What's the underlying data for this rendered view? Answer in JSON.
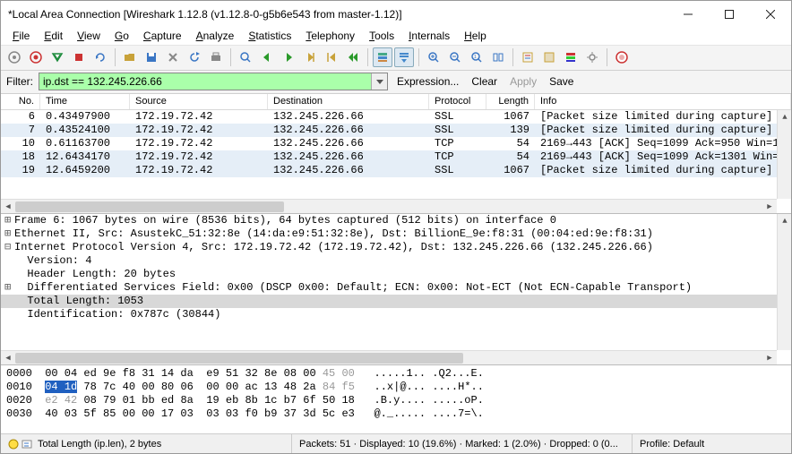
{
  "window": {
    "title": "*Local Area Connection   [Wireshark 1.12.8  (v1.12.8-0-g5b6e543 from master-1.12)]"
  },
  "menu": [
    "File",
    "Edit",
    "View",
    "Go",
    "Capture",
    "Analyze",
    "Statistics",
    "Telephony",
    "Tools",
    "Internals",
    "Help"
  ],
  "filter": {
    "label": "Filter:",
    "value": "ip.dst == 132.245.226.66",
    "bg": "#aaffaa",
    "actions": {
      "expression": "Expression...",
      "clear": "Clear",
      "apply": "Apply",
      "save": "Save"
    }
  },
  "packet_columns": [
    "No.",
    "Time",
    "Source",
    "Destination",
    "Protocol",
    "Length",
    "Info"
  ],
  "packets": [
    {
      "no": "6",
      "time": "0.43497900",
      "src": "172.19.72.42",
      "dst": "132.245.226.66",
      "proto": "SSL",
      "len": "1067",
      "info": "[Packet size limited during capture]",
      "sel": false
    },
    {
      "no": "7",
      "time": "0.43524100",
      "src": "172.19.72.42",
      "dst": "132.245.226.66",
      "proto": "SSL",
      "len": "139",
      "info": "[Packet size limited during capture]",
      "sel": true
    },
    {
      "no": "10",
      "time": "0.61163700",
      "src": "172.19.72.42",
      "dst": "132.245.226.66",
      "proto": "TCP",
      "len": "54",
      "info": "2169→443 [ACK] Seq=1099 Ack=950 Win=16",
      "sel": false
    },
    {
      "no": "18",
      "time": "12.6434170",
      "src": "172.19.72.42",
      "dst": "132.245.226.66",
      "proto": "TCP",
      "len": "54",
      "info": "2169→443 [ACK] Seq=1099 Ack=1301 Win=1",
      "sel": true
    },
    {
      "no": "19",
      "time": "12.6459200",
      "src": "172.19.72.42",
      "dst": "132.245.226.66",
      "proto": "SSL",
      "len": "1067",
      "info": "[Packet size limited during capture]",
      "sel": true
    }
  ],
  "detail_lines": [
    {
      "t": "+",
      "text": "Frame 6: 1067 bytes on wire (8536 bits), 64 bytes captured (512 bits) on interface 0",
      "indent": 0
    },
    {
      "t": "+",
      "text": "Ethernet II, Src: AsustekC_51:32:8e (14:da:e9:51:32:8e), Dst: BillionE_9e:f8:31 (00:04:ed:9e:f8:31)",
      "indent": 0
    },
    {
      "t": "-",
      "text": "Internet Protocol Version 4, Src: 172.19.72.42 (172.19.72.42), Dst: 132.245.226.66 (132.245.226.66)",
      "indent": 0
    },
    {
      "t": " ",
      "text": "Version: 4",
      "indent": 1
    },
    {
      "t": " ",
      "text": "Header Length: 20 bytes",
      "indent": 1
    },
    {
      "t": "+",
      "text": "Differentiated Services Field: 0x00 (DSCP 0x00: Default; ECN: 0x00: Not-ECT (Not ECN-Capable Transport)",
      "indent": 1
    },
    {
      "t": " ",
      "text": "Total Length: 1053",
      "indent": 1,
      "sel": true
    },
    {
      "t": " ",
      "text": "Identification: 0x787c (30844)",
      "indent": 1
    }
  ],
  "hex": {
    "lines": [
      {
        "off": "0000",
        "bytes": "00 04 ed 9e f8 31 14 da  e9 51 32 8e 08 00 ",
        "dim": "45 00",
        "ascii": ".....1.. .Q2...E."
      },
      {
        "off": "0010",
        "hl": "04 1d",
        "bytes": " 78 7c 40 00 80 06  00 00 ac 13 48 2a ",
        "dim": "84 f5",
        "ascii": "..x|@... ....H*.."
      },
      {
        "off": "0020",
        "dim0": "e2 42 ",
        "bytes": "08 79 01 bb ed 8a  19 eb 8b 1c b7 6f 50 18",
        "ascii": ".B.y.... .....oP."
      },
      {
        "off": "0030",
        "bytes": "40 03 5f 85 00 00 17 03  03 03 f0 b9 37 3d 5c e3",
        "ascii": "@._..... ....7=\\."
      }
    ]
  },
  "status": {
    "field": "Total Length (ip.len), 2 bytes",
    "stats": "Packets: 51 · Displayed: 10 (19.6%) · Marked: 1 (2.0%) · Dropped: 0 (0...",
    "profile": "Profile: Default"
  },
  "colors": {
    "accent": "#3a76c4",
    "sel_bg": "#e5eef7",
    "grid": "#e0e0e0"
  },
  "toolbar_icons": [
    {
      "name": "interfaces-icon",
      "c": "#888"
    },
    {
      "name": "options-icon",
      "c": "#c33"
    },
    {
      "name": "start-icon",
      "c": "#1a8a3a"
    },
    {
      "name": "stop-icon",
      "c": "#c33"
    },
    {
      "name": "restart-icon",
      "c": "#3a76c4"
    },
    {
      "sep": true
    },
    {
      "name": "open-icon",
      "c": "#c8a23a"
    },
    {
      "name": "save-icon",
      "c": "#3a76c4"
    },
    {
      "name": "close-icon",
      "c": "#888"
    },
    {
      "name": "reload-icon",
      "c": "#3a76c4"
    },
    {
      "name": "print-icon",
      "c": "#888"
    },
    {
      "sep": true
    },
    {
      "name": "find-icon",
      "c": "#3a76c4"
    },
    {
      "name": "back-icon",
      "c": "#2a9a2a"
    },
    {
      "name": "fwd-icon",
      "c": "#2a9a2a"
    },
    {
      "name": "goto-icon",
      "c": "#c8a23a"
    },
    {
      "name": "first-icon",
      "c": "#c8a23a"
    },
    {
      "name": "last-icon",
      "c": "#2a9a2a"
    },
    {
      "sep": true
    },
    {
      "name": "colorize-icon",
      "c": "#3a76c4",
      "active": true
    },
    {
      "name": "autoscroll-icon",
      "c": "#3a76c4",
      "active": true
    },
    {
      "sep": true
    },
    {
      "name": "zoomin-icon",
      "c": "#3a76c4"
    },
    {
      "name": "zoomout-icon",
      "c": "#3a76c4"
    },
    {
      "name": "zoom100-icon",
      "c": "#3a76c4"
    },
    {
      "name": "resize-icon",
      "c": "#3a76c4"
    },
    {
      "sep": true
    },
    {
      "name": "capfilter-icon",
      "c": "#c8a23a"
    },
    {
      "name": "dispfilter-icon",
      "c": "#c8a23a"
    },
    {
      "name": "coloring-icon",
      "c": "#c33"
    },
    {
      "name": "prefs-icon",
      "c": "#888"
    },
    {
      "sep": true
    },
    {
      "name": "help-icon",
      "c": "#c33"
    }
  ]
}
